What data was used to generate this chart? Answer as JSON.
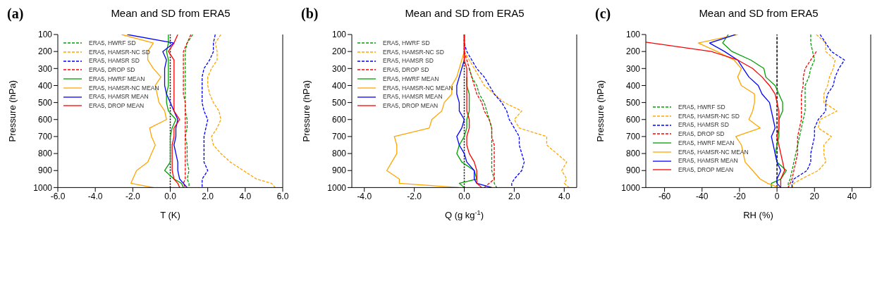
{
  "chart_data": [
    {
      "type": "line",
      "title": "Mean and SD from ERA5",
      "annotations": [
        "(a)"
      ],
      "xlabel": "T (K)",
      "ylabel": "Pressure (hPa)",
      "xlim": [
        -6,
        6
      ],
      "xticks": [
        {
          "value": -6,
          "label": "-6.0"
        },
        {
          "value": -4,
          "label": "-4.0"
        },
        {
          "value": -2,
          "label": "-2.0"
        },
        {
          "value": 0,
          "label": "0.0"
        },
        {
          "value": 2,
          "label": "2.0"
        },
        {
          "value": 4,
          "label": "4.0"
        },
        {
          "value": 6,
          "label": "6.0"
        }
      ],
      "ylim": [
        1000,
        100
      ],
      "yticks": [
        100,
        200,
        300,
        400,
        500,
        600,
        700,
        800,
        900,
        1000
      ],
      "legend": "top left",
      "ref_lines": [
        {
          "axis": "x",
          "value": 0,
          "color": "#000000",
          "line_style": "dotted"
        }
      ],
      "series": [
        {
          "name": "ERA5, HWRF SD",
          "color": "#00a000",
          "line_style": "dashed",
          "x": [
            1.2,
            0.9,
            0.8,
            0.8,
            0.8,
            0.8,
            0.8,
            0.8,
            0.8,
            0.8,
            0.9,
            0.9,
            0.8,
            0.9,
            0.9,
            0.9,
            1.0,
            0.9,
            1.0,
            1.0
          ],
          "values": [
            100,
            150,
            200,
            250,
            300,
            350,
            400,
            450,
            500,
            550,
            600,
            650,
            700,
            750,
            800,
            850,
            900,
            950,
            975,
            1000
          ]
        },
        {
          "name": "ERA5, HAMSR-NC SD",
          "color": "#ffa500",
          "line_style": "dashed",
          "x": [
            2.7,
            2.4,
            2.5,
            2.5,
            2.2,
            2.0,
            2.0,
            2.1,
            2.3,
            2.6,
            2.7,
            2.5,
            2.2,
            2.3,
            2.7,
            3.2,
            3.9,
            4.6,
            5.4,
            5.6
          ],
          "values": [
            100,
            150,
            200,
            250,
            300,
            350,
            400,
            450,
            500,
            550,
            600,
            650,
            700,
            750,
            800,
            850,
            900,
            950,
            975,
            1000
          ]
        },
        {
          "name": "ERA5, HAMSR SD",
          "color": "#0000ff",
          "line_style": "dashed",
          "x": [
            2.4,
            2.3,
            2.3,
            2.1,
            1.8,
            1.7,
            1.7,
            1.7,
            1.7,
            1.8,
            2.0,
            1.9,
            1.8,
            1.8,
            1.8,
            1.8,
            2.0,
            1.7,
            1.7,
            1.7
          ],
          "values": [
            100,
            150,
            200,
            250,
            300,
            350,
            400,
            450,
            500,
            550,
            600,
            650,
            700,
            750,
            800,
            850,
            900,
            950,
            975,
            1000
          ]
        },
        {
          "name": "ERA5, DROP SD",
          "color": "#ff0000",
          "line_style": "dashed",
          "x": [
            1.1,
            0.9,
            0.7,
            0.7,
            0.7,
            0.7,
            0.7,
            0.7,
            0.8,
            0.8,
            0.8,
            0.8,
            0.8,
            0.8,
            0.8,
            0.8,
            0.8,
            0.8,
            0.7,
            0.8
          ],
          "values": [
            100,
            150,
            200,
            250,
            300,
            350,
            400,
            450,
            500,
            550,
            600,
            650,
            700,
            750,
            800,
            850,
            900,
            950,
            975,
            1000
          ]
        },
        {
          "name": "ERA5, HWRF MEAN",
          "color": "#00a000",
          "line_style": "solid",
          "x": [
            -0.1,
            -0.1,
            -0.2,
            -0.1,
            -0.1,
            -0.1,
            -0.1,
            -0.2,
            -0.2,
            -0.1,
            0.3,
            0.1,
            0.0,
            0.0,
            0.0,
            0.0,
            -0.3,
            0.2,
            0.6,
            0.7
          ],
          "values": [
            100,
            150,
            200,
            250,
            300,
            350,
            400,
            450,
            500,
            550,
            600,
            650,
            700,
            750,
            800,
            850,
            900,
            950,
            975,
            1000
          ]
        },
        {
          "name": "ERA5, HAMSR-NC MEAN",
          "color": "#ffa500",
          "line_style": "solid",
          "x": [
            -2.6,
            -0.9,
            -1.2,
            -1.2,
            -0.9,
            -0.5,
            -0.8,
            -0.7,
            -0.6,
            -0.3,
            -0.2,
            -1.1,
            -1.0,
            -0.8,
            -1.0,
            -1.2,
            -1.8,
            -2.0,
            -2.1,
            -0.9
          ],
          "values": [
            100,
            150,
            200,
            250,
            300,
            350,
            400,
            450,
            500,
            550,
            600,
            650,
            700,
            750,
            800,
            850,
            900,
            950,
            975,
            1000
          ]
        },
        {
          "name": "ERA5, HAMSR MEAN",
          "color": "#0000ff",
          "line_style": "solid",
          "x": [
            -2.3,
            0.2,
            -0.4,
            -0.2,
            -0.3,
            -0.3,
            -0.3,
            -0.2,
            0.0,
            0.2,
            0.4,
            0.3,
            0.3,
            0.2,
            0.3,
            0.4,
            0.4,
            0.5,
            0.7,
            0.9
          ],
          "values": [
            100,
            150,
            200,
            250,
            300,
            350,
            400,
            450,
            500,
            550,
            600,
            650,
            700,
            750,
            800,
            850,
            900,
            950,
            975,
            1000
          ]
        },
        {
          "name": "ERA5, DROP MEAN",
          "color": "#ff0000",
          "line_style": "solid",
          "x": [
            0.4,
            0.2,
            -0.1,
            0.2,
            0.2,
            0.2,
            0.2,
            0.2,
            0.2,
            0.2,
            0.5,
            0.2,
            0.2,
            0.1,
            0.1,
            0.1,
            0.1,
            0.2,
            0.4,
            0.5
          ],
          "values": [
            100,
            150,
            200,
            250,
            300,
            350,
            400,
            450,
            500,
            550,
            600,
            650,
            700,
            750,
            800,
            850,
            900,
            950,
            975,
            1000
          ]
        }
      ]
    },
    {
      "type": "line",
      "title": "Mean and SD from ERA5",
      "annotations": [
        "(b)"
      ],
      "xlabel": "Q (g kg$^{-1}$)",
      "ylabel": "Pressure (hPa)",
      "xlim": [
        -4.5,
        4.5
      ],
      "xticks": [
        {
          "value": -4,
          "label": "-4.0"
        },
        {
          "value": -2,
          "label": "-2.0"
        },
        {
          "value": 0,
          "label": "0.0"
        },
        {
          "value": 2,
          "label": "2.0"
        },
        {
          "value": 4,
          "label": "4.0"
        }
      ],
      "ylim": [
        1000,
        100
      ],
      "yticks": [
        100,
        200,
        300,
        400,
        500,
        600,
        700,
        800,
        900,
        1000
      ],
      "legend": "top left",
      "ref_lines": [
        {
          "axis": "x",
          "value": 0,
          "color": "#000000",
          "line_style": "dotted"
        }
      ],
      "series": [
        {
          "name": "ERA5, HWRF SD",
          "color": "#00a000",
          "line_style": "dashed",
          "x": [
            0.2,
            0.3,
            0.5,
            0.6,
            0.8,
            0.9,
            1.0,
            1.1,
            1.1,
            1.1,
            1.1,
            1.1,
            1.1,
            1.2,
            1.2,
            1.3
          ],
          "values": [
            300,
            350,
            400,
            450,
            500,
            550,
            600,
            650,
            700,
            750,
            800,
            850,
            900,
            950,
            975,
            1000
          ]
        },
        {
          "name": "ERA5, HAMSR-NC SD",
          "color": "#ffa500",
          "line_style": "dashed",
          "x": [
            0,
            0,
            0,
            0.2,
            0.4,
            0.6,
            0.8,
            1.2,
            1.6,
            2.3,
            2.0,
            2.2,
            3.3,
            3.3,
            3.7,
            4.1,
            3.9,
            4.1,
            4.0,
            4.2
          ],
          "values": [
            100,
            150,
            200,
            250,
            300,
            350,
            400,
            450,
            500,
            550,
            600,
            650,
            700,
            750,
            800,
            850,
            900,
            950,
            975,
            1000
          ]
        },
        {
          "name": "ERA5, HAMSR SD",
          "color": "#0000ff",
          "line_style": "dashed",
          "x": [
            0,
            0,
            0.1,
            0.3,
            0.5,
            0.8,
            1.0,
            1.2,
            1.5,
            1.7,
            1.8,
            2.0,
            2.2,
            2.2,
            2.3,
            2.4,
            2.3,
            2.0,
            1.9,
            1.9
          ],
          "values": [
            100,
            150,
            200,
            250,
            300,
            350,
            400,
            450,
            500,
            550,
            600,
            650,
            700,
            750,
            800,
            850,
            900,
            950,
            975,
            1000
          ]
        },
        {
          "name": "ERA5, DROP SD",
          "color": "#ff0000",
          "line_style": "dashed",
          "x": [
            0,
            0,
            0,
            0.1,
            0.2,
            0.3,
            0.4,
            0.5,
            0.7,
            0.8,
            1.0,
            1.1,
            1.1,
            1.2,
            1.2,
            1.2,
            1.2,
            1.2,
            1.0,
            0.8
          ],
          "values": [
            100,
            150,
            200,
            250,
            300,
            350,
            400,
            450,
            500,
            550,
            600,
            650,
            700,
            750,
            800,
            850,
            900,
            950,
            975,
            1000
          ]
        },
        {
          "name": "ERA5, HWRF MEAN",
          "color": "#00a000",
          "line_style": "solid",
          "x": [
            0.1,
            0.1,
            0.2,
            0.2,
            0.2,
            0.1,
            0.1,
            0.0,
            -0.2,
            -0.3,
            -0.1,
            0.4,
            0.5,
            -0.2,
            0
          ],
          "values": [
            350,
            400,
            450,
            500,
            550,
            600,
            650,
            700,
            750,
            800,
            850,
            900,
            950,
            975,
            1000
          ]
        },
        {
          "name": "ERA5, HAMSR-NC MEAN",
          "color": "#ffa500",
          "line_style": "solid",
          "x": [
            0,
            0,
            0,
            -0.1,
            -0.2,
            -0.3,
            -0.5,
            -0.5,
            -0.8,
            -0.9,
            -1.3,
            -1.4,
            -2.8,
            -2.7,
            -2.7,
            -2.9,
            -3.1,
            -2.6,
            -2.6,
            -0.2
          ],
          "values": [
            100,
            150,
            200,
            250,
            300,
            350,
            400,
            450,
            500,
            550,
            600,
            650,
            700,
            750,
            800,
            850,
            900,
            950,
            975,
            1000
          ]
        },
        {
          "name": "ERA5, HAMSR MEAN",
          "color": "#0000ff",
          "line_style": "solid",
          "x": [
            0,
            0,
            0,
            0,
            -0.1,
            -0.2,
            -0.3,
            -0.3,
            -0.2,
            -0.2,
            0,
            -0.1,
            -0.3,
            -0.2,
            0.0,
            0.1,
            0.4,
            0.4,
            0.5,
            1.1
          ],
          "values": [
            100,
            150,
            200,
            250,
            300,
            350,
            400,
            450,
            500,
            550,
            600,
            650,
            700,
            750,
            800,
            850,
            900,
            950,
            975,
            1000
          ]
        },
        {
          "name": "ERA5, DROP MEAN",
          "color": "#ff0000",
          "line_style": "solid",
          "x": [
            0,
            0,
            0,
            0,
            0.1,
            0.1,
            0.1,
            0.1,
            0.1,
            0.2,
            0.2,
            0.1,
            0.1,
            0.2,
            0.4,
            0.5,
            0.5,
            0.5,
            0.7
          ],
          "values": [
            100,
            150,
            200,
            250,
            300,
            400,
            450,
            500,
            550,
            600,
            650,
            700,
            750,
            800,
            850,
            900,
            950,
            975,
            1000
          ]
        }
      ]
    },
    {
      "type": "line",
      "title": "Mean and SD from ERA5",
      "annotations": [
        "(c)"
      ],
      "xlabel": "RH (%)",
      "ylabel": "Pressure (hPa)",
      "xlim": [
        -70,
        50
      ],
      "xticks": [
        -60,
        -40,
        -20,
        0,
        20,
        40
      ],
      "ylim": [
        1000,
        100
      ],
      "yticks": [
        100,
        200,
        300,
        400,
        500,
        600,
        700,
        800,
        900,
        1000
      ],
      "legend": "left",
      "ref_lines": [
        {
          "axis": "x",
          "value": 0,
          "color": "#000000",
          "line_style": "dashed"
        }
      ],
      "series": [
        {
          "name": "ERA5, HWRF SD",
          "color": "#00a000",
          "line_style": "dashed",
          "x": [
            18,
            18,
            19,
            20,
            18,
            17,
            15,
            15,
            15,
            15,
            14,
            13,
            12,
            11,
            10,
            9,
            8,
            7,
            6,
            6
          ],
          "values": [
            100,
            150,
            200,
            250,
            300,
            350,
            400,
            450,
            500,
            550,
            600,
            650,
            700,
            750,
            800,
            850,
            900,
            950,
            975,
            1000
          ]
        },
        {
          "name": "ERA5, HAMSR-NC SD",
          "color": "#ffa500",
          "line_style": "dashed",
          "x": [
            21,
            26,
            26,
            31,
            30,
            28,
            27,
            25,
            25,
            32,
            23,
            22,
            29,
            25,
            25,
            26,
            22,
            13,
            9,
            8
          ],
          "values": [
            100,
            150,
            200,
            250,
            300,
            350,
            400,
            450,
            500,
            550,
            600,
            650,
            700,
            750,
            800,
            850,
            900,
            950,
            975,
            1000
          ]
        },
        {
          "name": "ERA5, HAMSR SD",
          "color": "#0000ff",
          "line_style": "dashed",
          "x": [
            23,
            26,
            29,
            36,
            33,
            31,
            30,
            27,
            26,
            26,
            22,
            20,
            20,
            19,
            18,
            18,
            16,
            9,
            8,
            8
          ],
          "values": [
            100,
            150,
            200,
            250,
            300,
            350,
            400,
            450,
            500,
            550,
            600,
            650,
            700,
            750,
            800,
            850,
            900,
            950,
            975,
            1000
          ]
        },
        {
          "name": "ERA5, DROP SD",
          "color": "#ff0000",
          "line_style": "dashed",
          "x": [
            21,
            18,
            15,
            14,
            14,
            13,
            13,
            13,
            13,
            12,
            11,
            11,
            11,
            10,
            9,
            8,
            7,
            6
          ],
          "values": [
            200,
            250,
            300,
            350,
            400,
            450,
            500,
            550,
            600,
            650,
            700,
            750,
            800,
            850,
            900,
            950,
            975,
            1000
          ]
        },
        {
          "name": "ERA5, HWRF MEAN",
          "color": "#00a000",
          "line_style": "solid",
          "x": [
            -26,
            -29,
            -24,
            -14,
            -7,
            -6,
            -1,
            1,
            3,
            3,
            1,
            1,
            1,
            0,
            -1,
            0,
            5,
            2,
            -3,
            -3
          ],
          "values": [
            100,
            150,
            200,
            250,
            300,
            350,
            400,
            450,
            500,
            550,
            600,
            650,
            700,
            750,
            800,
            850,
            900,
            950,
            975,
            1000
          ]
        },
        {
          "name": "ERA5, HAMSR-NC MEAN",
          "color": "#ffa500",
          "line_style": "solid",
          "x": [
            -21,
            -42,
            -32,
            -23,
            -19,
            -21,
            -19,
            -12,
            -12,
            -13,
            -15,
            -9,
            -22,
            -19,
            -18,
            -17,
            -13,
            -9,
            -5,
            1
          ],
          "values": [
            100,
            150,
            200,
            250,
            300,
            350,
            400,
            450,
            500,
            550,
            600,
            650,
            700,
            750,
            800,
            850,
            900,
            950,
            975,
            1000
          ]
        },
        {
          "name": "ERA5, HAMSR MEAN",
          "color": "#0000ff",
          "line_style": "solid",
          "x": [
            -22,
            -36,
            -28,
            -21,
            -18,
            -15,
            -10,
            -8,
            -4,
            -3,
            -2,
            -1,
            -3,
            -2,
            -1,
            0,
            2,
            0,
            0,
            2
          ],
          "values": [
            100,
            150,
            200,
            250,
            300,
            350,
            400,
            450,
            500,
            550,
            600,
            650,
            700,
            750,
            800,
            850,
            900,
            950,
            975,
            1000
          ]
        },
        {
          "name": "ERA5, DROP MEAN",
          "color": "#ff0000",
          "line_style": "solid",
          "x": [
            -70,
            -35,
            -21,
            -13,
            -8,
            -4,
            -1,
            0,
            1,
            1,
            1,
            0,
            1,
            2,
            3,
            4,
            2,
            2,
            2
          ],
          "values": [
            145,
            200,
            250,
            300,
            350,
            400,
            450,
            500,
            550,
            600,
            650,
            700,
            750,
            800,
            850,
            900,
            950,
            975,
            1000
          ]
        }
      ]
    }
  ]
}
